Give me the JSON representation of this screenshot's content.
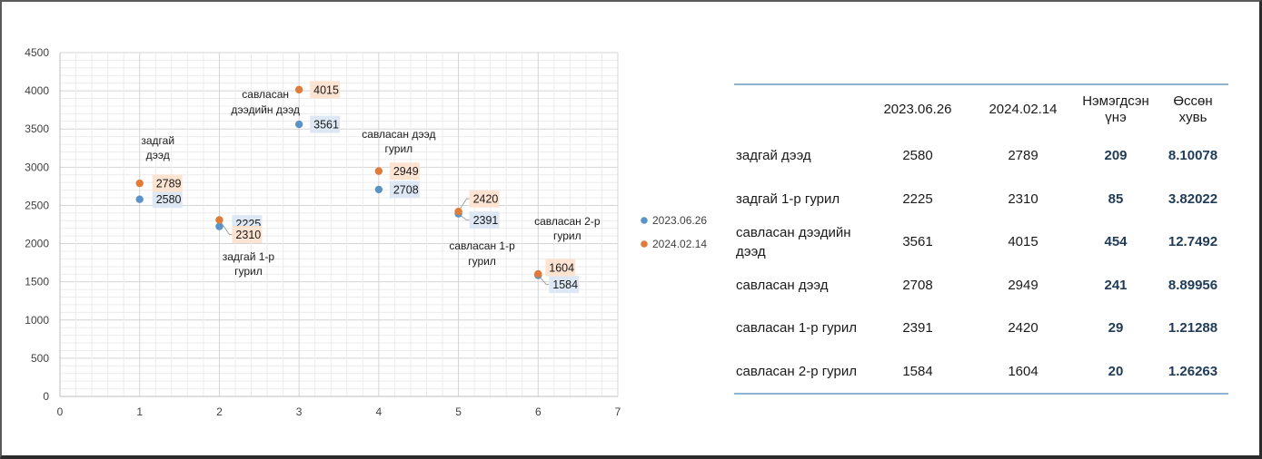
{
  "chart_data": {
    "type": "scatter",
    "xlim": [
      0,
      7
    ],
    "ylim": [
      0,
      4500
    ],
    "x_ticks": [
      "0",
      "1",
      "2",
      "3",
      "4",
      "5",
      "6",
      "7"
    ],
    "y_ticks": [
      "0",
      "500",
      "1000",
      "1500",
      "2000",
      "2500",
      "3000",
      "3500",
      "4000",
      "4500"
    ],
    "grid": true,
    "legend_position": "right",
    "series": [
      {
        "name": "2023.06.26",
        "color": "#5b93c6",
        "label_bg": "#dde8f4",
        "points": [
          {
            "x": 1,
            "y": 2580,
            "label": "2580"
          },
          {
            "x": 2,
            "y": 2225,
            "label": "2225"
          },
          {
            "x": 3,
            "y": 3561,
            "label": "3561"
          },
          {
            "x": 4,
            "y": 2708,
            "label": "2708"
          },
          {
            "x": 5,
            "y": 2391,
            "label": "2391"
          },
          {
            "x": 6,
            "y": 1584,
            "label": "1584"
          }
        ]
      },
      {
        "name": "2024.02.14",
        "color": "#e07b39",
        "label_bg": "#fde4d2",
        "points": [
          {
            "x": 1,
            "y": 2789,
            "label": "2789"
          },
          {
            "x": 2,
            "y": 2310,
            "label": "2310"
          },
          {
            "x": 3,
            "y": 4015,
            "label": "4015"
          },
          {
            "x": 4,
            "y": 2949,
            "label": "2949"
          },
          {
            "x": 5,
            "y": 2420,
            "label": "2420"
          },
          {
            "x": 6,
            "y": 1604,
            "label": "1604"
          }
        ]
      }
    ],
    "category_annotations": [
      {
        "x": 1,
        "lines": [
          "задгай",
          "дээд"
        ]
      },
      {
        "x": 2,
        "lines": [
          "задгай 1-р",
          "гурил"
        ]
      },
      {
        "x": 3,
        "lines": [
          "савласан",
          "дээдийн дээд"
        ]
      },
      {
        "x": 4,
        "lines": [
          "савласан дээд",
          "гурил"
        ]
      },
      {
        "x": 5,
        "lines": [
          "савласан 1-р",
          "гурил"
        ]
      },
      {
        "x": 6,
        "lines": [
          "савласан 2-р",
          "гурил"
        ]
      }
    ]
  },
  "table": {
    "headers": [
      "",
      "2023.06.26",
      "2024.02.14",
      "Нэмэгдсэн үнэ",
      "Өссөн хувь"
    ],
    "rows": [
      {
        "name": "задгай дээд",
        "v1": "2580",
        "v2": "2789",
        "diff": "209",
        "pct": "8.10078"
      },
      {
        "name": "задгай 1-р гурил",
        "v1": "2225",
        "v2": "2310",
        "diff": "85",
        "pct": "3.82022"
      },
      {
        "name": "савласан дээдийн дээд",
        "v1": "3561",
        "v2": "4015",
        "diff": "454",
        "pct": "12.7492"
      },
      {
        "name": "савласан дээд",
        "v1": "2708",
        "v2": "2949",
        "diff": "241",
        "pct": "8.89956"
      },
      {
        "name": "савласан 1-р гурил",
        "v1": "2391",
        "v2": "2420",
        "diff": "29",
        "pct": "1.21288"
      },
      {
        "name": "савласан 2-р гурил",
        "v1": "1584",
        "v2": "1604",
        "diff": "20",
        "pct": "1.26263"
      }
    ]
  }
}
